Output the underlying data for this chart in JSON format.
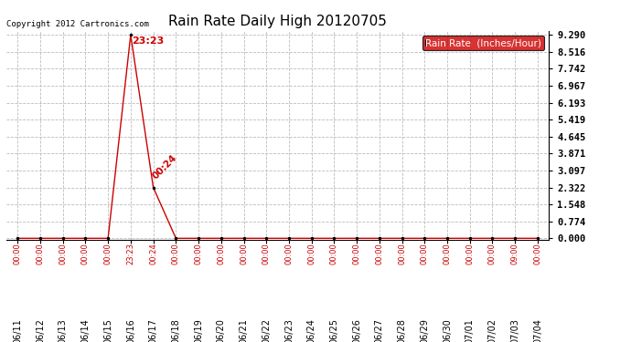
{
  "title": "Rain Rate Daily High 20120705",
  "copyright_text": "Copyright 2012 Cartronics.com",
  "legend_label": "Rain Rate  (Inches/Hour)",
  "x_dates": [
    "06/11",
    "06/12",
    "06/13",
    "06/14",
    "06/15",
    "06/16",
    "06/17",
    "06/18",
    "06/19",
    "06/20",
    "06/21",
    "06/22",
    "06/23",
    "06/24",
    "06/25",
    "06/26",
    "06/27",
    "06/28",
    "06/29",
    "06/30",
    "07/01",
    "07/02",
    "07/03",
    "07/04"
  ],
  "y_values": [
    0.0,
    0.0,
    0.0,
    0.0,
    0.0,
    9.29,
    2.322,
    0.0,
    0.0,
    0.0,
    0.0,
    0.0,
    0.0,
    0.0,
    0.0,
    0.0,
    0.0,
    0.0,
    0.0,
    0.0,
    0.0,
    0.0,
    0.0,
    0.0
  ],
  "x_time_labels": [
    "00:00",
    "00:00",
    "00:00",
    "00:00",
    "00:00",
    "23:23",
    "00:24",
    "00:00",
    "00:00",
    "00:00",
    "00:00",
    "00:00",
    "00:00",
    "00:00",
    "00:00",
    "00:00",
    "00:00",
    "00:00",
    "00:00",
    "00:00",
    "00:00",
    "00:00",
    "09:00",
    "00:00"
  ],
  "ytick_values": [
    0.0,
    0.774,
    1.548,
    2.322,
    3.097,
    3.871,
    4.645,
    5.419,
    6.193,
    6.967,
    7.742,
    8.516,
    9.29
  ],
  "line_color": "#cc0000",
  "marker_color": "#000000",
  "grid_color": "#bbbbbb",
  "bg_color": "#ffffff",
  "title_fontsize": 11,
  "legend_bg": "#cc0000",
  "legend_text_color": "#ffffff",
  "peak_label": "23:23",
  "peak_index": 5,
  "peak_value": 9.29,
  "second_label": "00:24",
  "second_index": 6,
  "second_value": 2.322
}
